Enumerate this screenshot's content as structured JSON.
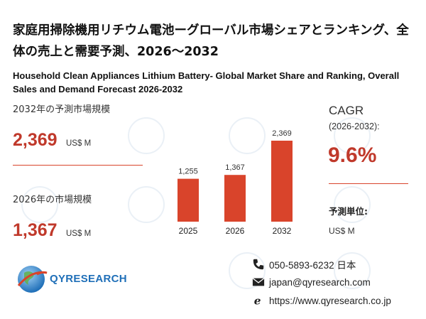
{
  "title_ja": "家庭用掃除機用リチウム電池ーグローバル市場シェアとランキング、全体の売上と需要予測、2026～2032",
  "title_en": "Household Clean Appliances Lithium Battery- Global Market Share and Ranking, Overall Sales and Demand Forecast 2026-2032",
  "forecast_2032": {
    "label": "2032年の予測市場規模",
    "value": "2,369",
    "unit": "US$ M"
  },
  "market_2026": {
    "label": "2026年の市場規模",
    "value": "1,367",
    "unit": "US$ M"
  },
  "cagr": {
    "label": "CAGR",
    "period": "(2026-2032):",
    "value": "9.6%"
  },
  "unit_info": {
    "label": "予測単位:",
    "value": "US$ M"
  },
  "chart_data": {
    "type": "bar",
    "categories": [
      "2025",
      "2026",
      "2032"
    ],
    "values": [
      1255,
      1367,
      2369
    ],
    "value_labels": [
      "1,255",
      "1,367",
      "2,369"
    ],
    "color": "#d9442b"
  },
  "logo": {
    "text": "QYRESEARCH"
  },
  "contact": {
    "phone": "050-5893-6232 日本",
    "email": "japan@qyresearch.com",
    "website": "https://www.qyresearch.co.jp"
  },
  "colors": {
    "accent": "#c0392b",
    "bar": "#d9442b",
    "watermark": "#c9d6e4"
  }
}
